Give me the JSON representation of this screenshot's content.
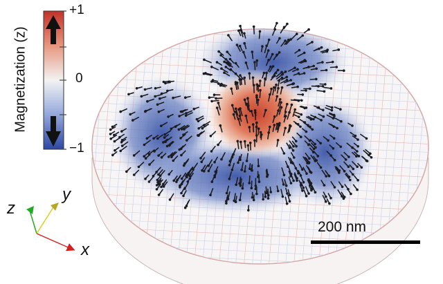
{
  "colorbar": {
    "title": "Magnetization (z)",
    "ticks": {
      "top": "+1",
      "middle": "0",
      "bottom": "−1"
    },
    "colors": {
      "top": "#c83a2e",
      "middle": "#f2f2f2",
      "bottom": "#2f4aa6"
    },
    "icons": [
      "up-arrow-icon",
      "down-arrow-icon"
    ]
  },
  "axes": {
    "z": "z",
    "y": "y",
    "x": "x",
    "colors": {
      "z": "#22aa22",
      "y": "#d8d020",
      "x": "#d42020"
    }
  },
  "scale_bar": {
    "label": "200 nm"
  }
}
